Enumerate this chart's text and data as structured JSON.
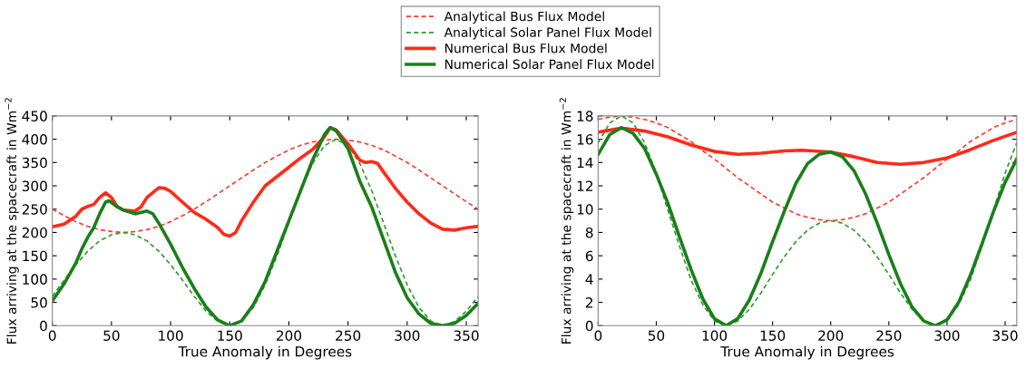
{
  "chart_data": [
    {
      "type": "line",
      "xlabel": "True Anomaly in Degrees",
      "ylabel": "Flux arriving at the spacecraft in Wm$^{−2}$",
      "xlim": [
        0,
        360
      ],
      "ylim": [
        0,
        450
      ],
      "xticks": [
        0,
        50,
        100,
        150,
        200,
        250,
        300,
        350
      ],
      "yticks": [
        0,
        50,
        100,
        150,
        200,
        250,
        300,
        350,
        400,
        450
      ],
      "grid": false,
      "legend": "top",
      "marker": "none",
      "series": [
        {
          "name": "Analytical Bus Flux Model",
          "color": "#ff3b2f",
          "line_style": "dashed",
          "x": [
            0,
            10,
            20,
            30,
            40,
            50,
            60,
            70,
            80,
            90,
            100,
            110,
            120,
            130,
            140,
            150,
            160,
            170,
            180,
            190,
            200,
            210,
            220,
            230,
            240,
            250,
            260,
            270,
            280,
            290,
            300,
            310,
            320,
            330,
            340,
            350,
            360
          ],
          "values": [
            250,
            236,
            223,
            213,
            206,
            202,
            200,
            202,
            206,
            213,
            223,
            236,
            250,
            266,
            283,
            300,
            317,
            334,
            350,
            364,
            377,
            387,
            394,
            398,
            400,
            398,
            394,
            387,
            377,
            364,
            350,
            334,
            317,
            300,
            283,
            266,
            250
          ]
        },
        {
          "name": "Analytical Solar Panel Flux Model",
          "color": "#2e9e2e",
          "line_style": "dashed",
          "x": [
            0,
            10,
            20,
            30,
            40,
            50,
            60,
            70,
            80,
            90,
            100,
            110,
            120,
            130,
            140,
            150,
            160,
            170,
            180,
            190,
            200,
            210,
            220,
            230,
            240,
            250,
            260,
            270,
            280,
            290,
            300,
            310,
            320,
            330,
            340,
            350,
            360
          ],
          "values": [
            63,
            98,
            131,
            160,
            182,
            195,
            200,
            195,
            182,
            160,
            131,
            98,
            63,
            31,
            9,
            0,
            10,
            39,
            88,
            150,
            221,
            290,
            348,
            386,
            400,
            386,
            348,
            290,
            221,
            150,
            88,
            39,
            10,
            0,
            9,
            31,
            63
          ]
        },
        {
          "name": "Numerical Bus Flux Model",
          "color": "#ff2a1a",
          "line_style": "solid",
          "x": [
            0,
            10,
            20,
            25,
            30,
            35,
            40,
            45,
            50,
            55,
            60,
            70,
            75,
            80,
            90,
            95,
            100,
            110,
            120,
            130,
            140,
            145,
            150,
            155,
            160,
            170,
            180,
            190,
            200,
            210,
            220,
            230,
            235,
            240,
            250,
            260,
            265,
            270,
            275,
            280,
            290,
            300,
            310,
            320,
            330,
            340,
            350,
            360
          ],
          "values": [
            212,
            218,
            235,
            250,
            256,
            260,
            275,
            285,
            275,
            255,
            248,
            246,
            255,
            275,
            296,
            295,
            288,
            265,
            243,
            228,
            210,
            196,
            192,
            200,
            225,
            265,
            300,
            320,
            340,
            360,
            378,
            405,
            425,
            420,
            390,
            355,
            350,
            352,
            348,
            330,
            295,
            265,
            240,
            220,
            207,
            205,
            210,
            213
          ]
        },
        {
          "name": "Numerical Solar Panel Flux Model",
          "color": "#1a7f1a",
          "line_style": "solid",
          "x": [
            0,
            10,
            20,
            25,
            30,
            35,
            40,
            45,
            48,
            55,
            60,
            70,
            80,
            85,
            90,
            100,
            110,
            120,
            130,
            140,
            150,
            160,
            170,
            180,
            190,
            200,
            210,
            220,
            230,
            235,
            240,
            250,
            260,
            270,
            280,
            290,
            300,
            310,
            320,
            330,
            340,
            350,
            360
          ],
          "values": [
            53,
            90,
            135,
            165,
            190,
            210,
            240,
            265,
            268,
            255,
            248,
            240,
            246,
            240,
            220,
            175,
            125,
            80,
            40,
            12,
            0,
            10,
            45,
            95,
            160,
            225,
            290,
            355,
            410,
            425,
            418,
            380,
            310,
            255,
            185,
            115,
            60,
            25,
            5,
            0,
            5,
            22,
            48
          ]
        }
      ]
    },
    {
      "type": "line",
      "xlabel": "True Anomaly in Degrees",
      "ylabel": "Flux arriving at the spacecraft in Wm$^{−2}$",
      "xlim": [
        0,
        360
      ],
      "ylim": [
        0,
        18
      ],
      "xticks": [
        0,
        50,
        100,
        150,
        200,
        250,
        300,
        350
      ],
      "yticks": [
        0,
        2,
        4,
        6,
        8,
        10,
        12,
        14,
        16,
        18
      ],
      "grid": false,
      "marker": "none",
      "series": [
        {
          "color": "#ff3b2f",
          "line_style": "dashed",
          "x": [
            0,
            10,
            20,
            30,
            40,
            50,
            60,
            70,
            80,
            90,
            100,
            110,
            120,
            130,
            140,
            150,
            160,
            170,
            180,
            190,
            200,
            210,
            220,
            230,
            240,
            250,
            260,
            270,
            280,
            290,
            300,
            310,
            320,
            330,
            340,
            350,
            360
          ],
          "values": [
            17.7,
            17.9,
            18,
            17.9,
            17.7,
            17.4,
            17.0,
            16.4,
            15.8,
            15.0,
            14.3,
            13.5,
            12.7,
            12.0,
            11.3,
            10.6,
            10.1,
            9.6,
            9.3,
            9.1,
            9,
            9.1,
            9.3,
            9.6,
            10.1,
            10.6,
            11.3,
            12.0,
            12.7,
            13.5,
            14.3,
            15.0,
            15.8,
            16.4,
            17.0,
            17.4,
            17.7
          ]
        },
        {
          "color": "#2e9e2e",
          "line_style": "dashed",
          "x": [
            0,
            10,
            20,
            30,
            40,
            50,
            60,
            70,
            80,
            90,
            100,
            110,
            120,
            130,
            140,
            150,
            160,
            170,
            180,
            190,
            200,
            210,
            220,
            230,
            240,
            250,
            260,
            270,
            280,
            290,
            300,
            310,
            320,
            330,
            340,
            350,
            360
          ],
          "values": [
            15.7,
            17.4,
            18,
            17.4,
            15.7,
            13.1,
            9.9,
            6.8,
            3.9,
            1.8,
            0.4,
            0,
            0.4,
            1.4,
            2.8,
            4.4,
            5.9,
            7.2,
            8.2,
            8.8,
            9,
            8.8,
            8.2,
            7.2,
            5.9,
            4.4,
            2.8,
            1.4,
            0.4,
            0,
            0.4,
            1.8,
            3.9,
            6.8,
            9.9,
            13.1,
            15.7
          ]
        },
        {
          "color": "#ff2a1a",
          "line_style": "solid",
          "x": [
            0,
            20,
            40,
            60,
            80,
            100,
            120,
            140,
            160,
            175,
            200,
            220,
            240,
            260,
            280,
            300,
            320,
            340,
            360
          ],
          "values": [
            16.6,
            16.95,
            16.7,
            16.2,
            15.5,
            14.95,
            14.7,
            14.8,
            15.0,
            15.05,
            14.9,
            14.5,
            14.0,
            13.85,
            14.0,
            14.4,
            15.1,
            15.9,
            16.6
          ]
        },
        {
          "color": "#1a7f1a",
          "line_style": "solid",
          "x": [
            0,
            10,
            20,
            30,
            40,
            50,
            60,
            70,
            80,
            90,
            100,
            110,
            120,
            130,
            140,
            150,
            160,
            170,
            180,
            190,
            200,
            210,
            220,
            230,
            240,
            250,
            260,
            270,
            280,
            290,
            300,
            310,
            320,
            330,
            340,
            350,
            360
          ],
          "values": [
            14.7,
            16.4,
            17,
            16.5,
            15.2,
            13,
            10.5,
            7.6,
            4.8,
            2.3,
            0.6,
            0,
            0.6,
            2.2,
            4.5,
            7.2,
            9.8,
            12.2,
            13.9,
            14.7,
            14.9,
            14.5,
            13.3,
            11.3,
            8.8,
            6.1,
            3.6,
            1.6,
            0.4,
            0,
            0.5,
            2,
            4.3,
            7,
            9.8,
            12.3,
            14.3
          ]
        }
      ]
    }
  ]
}
